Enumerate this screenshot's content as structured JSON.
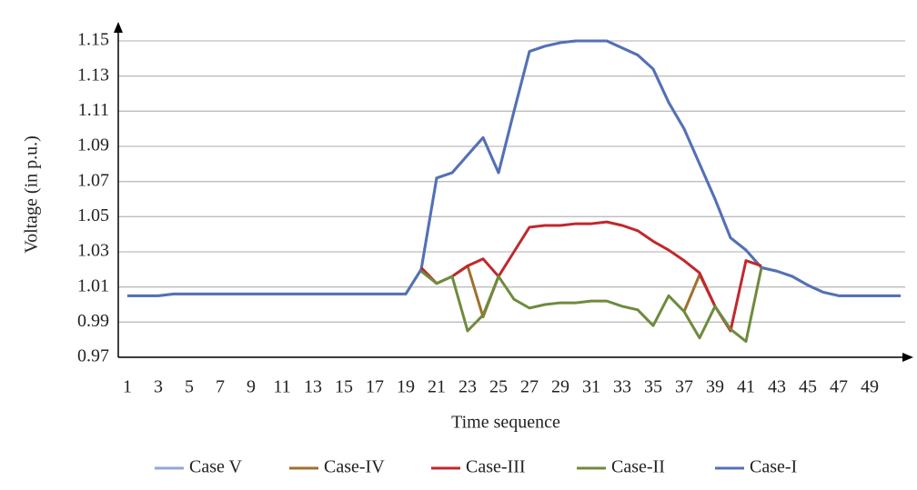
{
  "chart_data": {
    "type": "line",
    "x_label": "Time sequence",
    "y_label": "Voltage (in p.u.)",
    "categories": [
      1,
      null,
      3,
      null,
      5,
      null,
      7,
      null,
      9,
      null,
      11,
      null,
      13,
      null,
      15,
      null,
      17,
      null,
      19,
      null,
      21,
      null,
      23,
      null,
      25,
      null,
      27,
      null,
      29,
      null,
      31,
      null,
      33,
      null,
      35,
      null,
      37,
      null,
      39,
      null,
      41,
      null,
      43,
      null,
      45,
      null,
      47,
      null,
      49,
      null,
      null
    ],
    "ylim": [
      0.97,
      1.15
    ],
    "yticks": [
      0.97,
      0.99,
      1.01,
      1.03,
      1.05,
      1.07,
      1.09,
      1.11,
      1.13,
      1.15
    ],
    "grid": true,
    "legend": "bottom",
    "series": [
      {
        "name": "Case V",
        "color": "#8fa9d8",
        "values": [
          1.005,
          1.005,
          1.005,
          1.006,
          1.006,
          1.006,
          1.006,
          1.006,
          1.006,
          1.006,
          1.006,
          1.006,
          1.006,
          1.006,
          1.006,
          1.006,
          1.006,
          1.006,
          1.006,
          1.02,
          1.072,
          1.075,
          1.085,
          1.095,
          1.075,
          1.11,
          1.144,
          1.147,
          1.149,
          1.15,
          1.15,
          1.15,
          1.146,
          1.142,
          1.134,
          1.115,
          1.1,
          1.08,
          1.06,
          1.038,
          1.031,
          1.021,
          1.019,
          1.016,
          1.011,
          1.007,
          1.005,
          1.005,
          1.005,
          1.005,
          1.005
        ]
      },
      {
        "name": "Case-IV",
        "color": "#a0702e",
        "values": [
          null,
          null,
          null,
          null,
          null,
          null,
          null,
          null,
          null,
          null,
          null,
          null,
          null,
          null,
          null,
          null,
          null,
          null,
          null,
          null,
          null,
          1.016,
          1.022,
          0.993,
          1.016,
          null,
          null,
          null,
          null,
          null,
          null,
          null,
          null,
          null,
          null,
          null,
          0.996,
          1.017,
          0.999,
          null,
          null,
          null,
          null,
          null,
          null,
          null,
          null,
          null,
          null,
          null,
          null
        ]
      },
      {
        "name": "Case-III",
        "color": "#c0282d",
        "values": [
          null,
          null,
          null,
          null,
          null,
          null,
          null,
          null,
          null,
          null,
          null,
          null,
          null,
          null,
          null,
          null,
          null,
          null,
          null,
          1.021,
          1.012,
          1.016,
          1.022,
          1.026,
          1.016,
          1.03,
          1.044,
          1.045,
          1.045,
          1.046,
          1.046,
          1.047,
          1.045,
          1.042,
          1.036,
          1.031,
          1.025,
          1.018,
          0.999,
          0.985,
          1.025,
          1.022,
          null,
          null,
          null,
          null,
          null,
          null,
          null,
          null,
          null
        ]
      },
      {
        "name": "Case-II",
        "color": "#6e8b3d",
        "values": [
          null,
          null,
          null,
          null,
          null,
          null,
          null,
          null,
          null,
          null,
          null,
          null,
          null,
          null,
          null,
          null,
          null,
          null,
          null,
          1.019,
          1.012,
          1.016,
          0.985,
          0.994,
          1.016,
          1.003,
          0.998,
          1.0,
          1.001,
          1.001,
          1.002,
          1.002,
          0.999,
          0.997,
          0.988,
          1.005,
          0.996,
          0.981,
          0.999,
          0.986,
          0.979,
          1.021,
          null,
          null,
          null,
          null,
          null,
          null,
          null,
          null,
          null
        ]
      },
      {
        "name": "Case-I",
        "color": "#5470b5",
        "values": [
          1.005,
          1.005,
          1.005,
          1.006,
          1.006,
          1.006,
          1.006,
          1.006,
          1.006,
          1.006,
          1.006,
          1.006,
          1.006,
          1.006,
          1.006,
          1.006,
          1.006,
          1.006,
          1.006,
          1.02,
          1.072,
          1.075,
          1.085,
          1.095,
          1.075,
          1.11,
          1.144,
          1.147,
          1.149,
          1.15,
          1.15,
          1.15,
          1.146,
          1.142,
          1.134,
          1.115,
          1.1,
          1.08,
          1.06,
          1.038,
          1.031,
          1.021,
          1.019,
          1.016,
          1.011,
          1.007,
          1.005,
          1.005,
          1.005,
          1.005,
          1.005
        ]
      }
    ]
  }
}
